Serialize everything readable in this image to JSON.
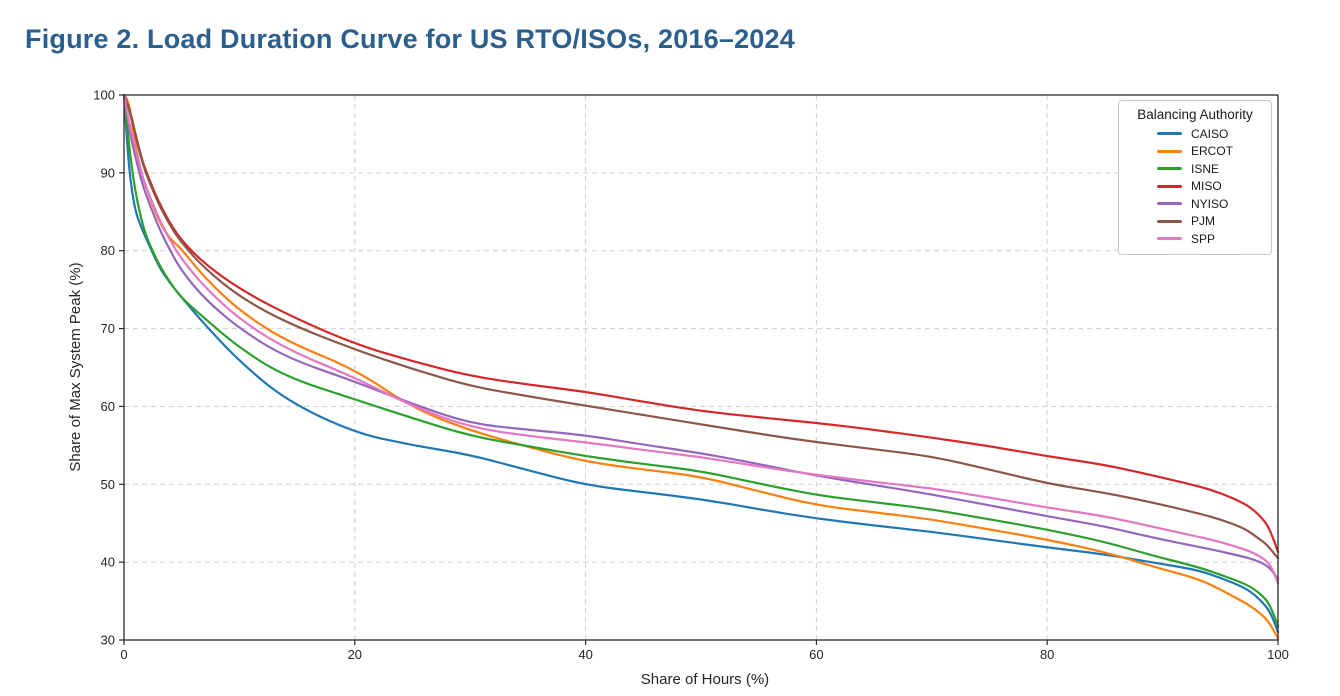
{
  "figure": {
    "title": "Figure 2. Load Duration Curve for US RTO/ISOs, 2016–2024",
    "title_color": "#2b5f8e",
    "background": "#ffffff"
  },
  "chart_data": {
    "type": "line",
    "title": "",
    "xlabel": "Share of Hours (%)",
    "ylabel": "Share of Max System Peak (%)",
    "xlim": [
      0,
      100
    ],
    "ylim": [
      30,
      100
    ],
    "xticks": [
      0,
      20,
      40,
      60,
      80,
      100
    ],
    "yticks": [
      30,
      40,
      50,
      60,
      70,
      80,
      90,
      100
    ],
    "grid": "dashed",
    "grid_color": "#cfcfcf",
    "spine_color": "#2b2b2b",
    "tick_label_color": "#262626",
    "legend": {
      "title": "Balancing Authority",
      "position": "upper right"
    },
    "x": [
      0,
      0.3,
      0.6,
      1,
      1.5,
      2,
      3,
      4,
      5,
      7,
      10,
      14,
      20,
      25,
      30,
      35,
      40,
      45,
      50,
      55,
      60,
      65,
      70,
      75,
      80,
      85,
      89,
      93,
      95,
      97,
      98,
      99,
      99.5,
      100
    ],
    "series": [
      {
        "name": "CAISO",
        "color": "#1f77b4",
        "values": [
          100,
          93.0,
          88.5,
          85.0,
          83.0,
          81.3,
          78.0,
          75.8,
          74.0,
          70.5,
          65.8,
          60.8,
          56.6,
          55.0,
          53.8,
          51.8,
          49.9,
          49.0,
          48.1,
          46.8,
          45.6,
          44.7,
          43.9,
          42.9,
          41.9,
          41.0,
          40.0,
          39.0,
          38.0,
          36.8,
          35.8,
          34.3,
          33.0,
          31.0
        ]
      },
      {
        "name": "ERCOT",
        "color": "#ff7f0e",
        "values": [
          100,
          99.5,
          97.5,
          93.5,
          90.0,
          87.8,
          83.8,
          81.5,
          80.2,
          76.5,
          72.3,
          68.4,
          64.8,
          59.8,
          56.9,
          54.8,
          52.9,
          51.9,
          51.0,
          49.1,
          47.3,
          46.4,
          45.5,
          44.2,
          42.9,
          41.3,
          39.5,
          37.9,
          36.5,
          34.9,
          34.0,
          32.7,
          31.6,
          30.2
        ]
      },
      {
        "name": "ISNE",
        "color": "#2ca02c",
        "values": [
          100,
          95.5,
          91.5,
          87.5,
          84.0,
          81.5,
          78.3,
          75.9,
          73.9,
          71.3,
          67.5,
          63.8,
          60.9,
          58.5,
          56.2,
          54.9,
          53.6,
          52.6,
          51.7,
          50.1,
          48.6,
          47.7,
          46.8,
          45.5,
          44.2,
          42.6,
          40.9,
          39.4,
          38.4,
          37.3,
          36.5,
          35.2,
          33.8,
          31.8
        ]
      },
      {
        "name": "MISO",
        "color": "#d62728",
        "values": [
          100,
          99.0,
          97.5,
          95.0,
          92.0,
          89.8,
          86.3,
          83.5,
          81.3,
          78.3,
          75.1,
          71.9,
          68.0,
          65.8,
          63.9,
          62.8,
          61.9,
          60.6,
          59.4,
          58.6,
          57.9,
          57.0,
          56.0,
          54.9,
          53.6,
          52.5,
          51.2,
          49.8,
          48.9,
          47.6,
          46.6,
          45.0,
          43.4,
          41.3
        ]
      },
      {
        "name": "NYISO",
        "color": "#9467bd",
        "values": [
          100,
          97.0,
          94.5,
          92.0,
          89.0,
          86.8,
          83.0,
          80.0,
          77.4,
          73.8,
          70.0,
          66.3,
          63.2,
          60.3,
          57.8,
          57.0,
          56.3,
          55.1,
          54.0,
          52.6,
          51.1,
          49.9,
          48.7,
          47.3,
          45.9,
          44.6,
          43.2,
          42.0,
          41.4,
          40.7,
          40.3,
          39.6,
          38.9,
          37.8
        ]
      },
      {
        "name": "PJM",
        "color": "#8c564b",
        "values": [
          100,
          98.8,
          97.2,
          94.8,
          91.8,
          89.5,
          86.0,
          83.2,
          81.0,
          77.7,
          74.1,
          70.8,
          67.3,
          64.8,
          62.6,
          61.3,
          60.1,
          58.9,
          57.7,
          56.5,
          55.4,
          54.5,
          53.6,
          51.9,
          50.1,
          48.9,
          47.7,
          46.3,
          45.5,
          44.4,
          43.4,
          42.3,
          41.4,
          40.5
        ]
      },
      {
        "name": "SPP",
        "color": "#e377c2",
        "values": [
          100,
          97.5,
          95.5,
          93.0,
          90.0,
          87.8,
          84.2,
          81.3,
          78.9,
          75.3,
          71.2,
          67.4,
          63.7,
          60.0,
          57.3,
          56.2,
          55.4,
          54.4,
          53.5,
          52.3,
          51.2,
          50.3,
          49.5,
          48.3,
          47.0,
          45.9,
          44.6,
          43.3,
          42.6,
          41.7,
          41.1,
          40.2,
          39.2,
          37.3
        ]
      }
    ]
  }
}
